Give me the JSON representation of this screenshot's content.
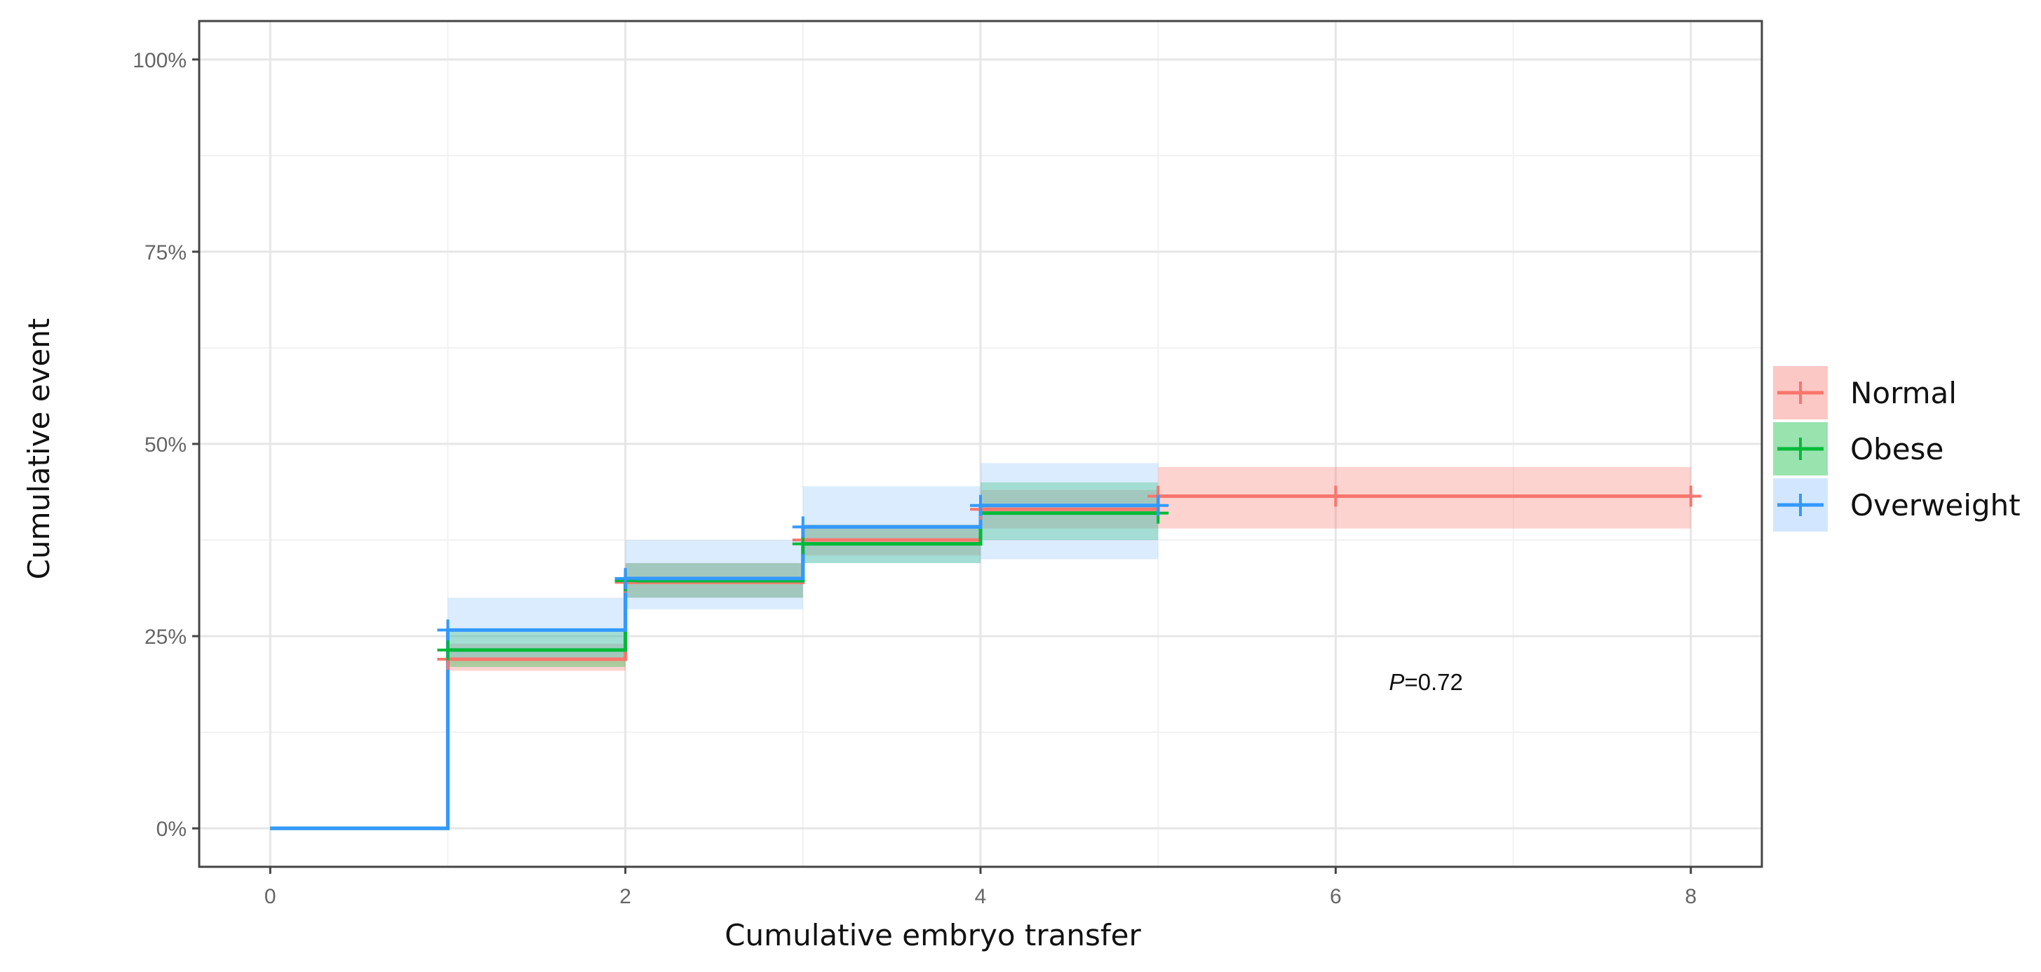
{
  "chart_data": {
    "type": "line",
    "subtype": "step",
    "title": "",
    "xlabel": "Cumulative embryo transfer",
    "ylabel": "Cumulative  event",
    "xlim": [
      -0.4,
      8.4
    ],
    "ylim": [
      -0.05,
      1.05
    ],
    "x_ticks": [
      0,
      2,
      4,
      6,
      8
    ],
    "x_tick_labels": [
      "0",
      "2",
      "4",
      "6",
      "8"
    ],
    "y_ticks": [
      0,
      0.25,
      0.5,
      0.75,
      1.0
    ],
    "y_tick_labels": [
      "0%",
      "25%",
      "50%",
      "75%",
      "100%"
    ],
    "grid": true,
    "legend_position": "right",
    "annotation": {
      "italic": "P",
      "rest": "=0.72",
      "x": 6.3,
      "y": 0.18
    },
    "series": [
      {
        "name": "Normal",
        "color": "#F8766D",
        "fill": "#F8766D",
        "steps": [
          {
            "x": 1,
            "y": 0.22,
            "lo": 0.205,
            "hi": 0.24
          },
          {
            "x": 2,
            "y": 0.32,
            "lo": 0.3,
            "hi": 0.345
          },
          {
            "x": 3,
            "y": 0.375,
            "lo": 0.355,
            "hi": 0.395
          },
          {
            "x": 4,
            "y": 0.415,
            "lo": 0.39,
            "hi": 0.44
          },
          {
            "x": 5,
            "y": 0.432,
            "lo": 0.39,
            "hi": 0.47
          }
        ],
        "x_end": 8,
        "censor_x": [
          1,
          2,
          3,
          4,
          5,
          6,
          8
        ]
      },
      {
        "name": "Obese",
        "color": "#00BA38",
        "fill": "#00BA38",
        "steps": [
          {
            "x": 1,
            "y": 0.232,
            "lo": 0.21,
            "hi": 0.26
          },
          {
            "x": 2,
            "y": 0.322,
            "lo": 0.3,
            "hi": 0.345
          },
          {
            "x": 3,
            "y": 0.37,
            "lo": 0.345,
            "hi": 0.395
          },
          {
            "x": 4,
            "y": 0.41,
            "lo": 0.375,
            "hi": 0.45
          }
        ],
        "x_end": 5,
        "censor_x": [
          1,
          2,
          3,
          5
        ]
      },
      {
        "name": "Overweight",
        "color": "#3399FF",
        "fill": "#8FC4FF",
        "steps": [
          {
            "x": 1,
            "y": 0.258,
            "lo": 0.22,
            "hi": 0.3
          },
          {
            "x": 2,
            "y": 0.325,
            "lo": 0.285,
            "hi": 0.375
          },
          {
            "x": 3,
            "y": 0.392,
            "lo": 0.345,
            "hi": 0.445
          },
          {
            "x": 4,
            "y": 0.42,
            "lo": 0.35,
            "hi": 0.475
          }
        ],
        "x_end": 5,
        "censor_x": [
          1,
          2,
          3,
          4,
          5
        ]
      }
    ]
  }
}
